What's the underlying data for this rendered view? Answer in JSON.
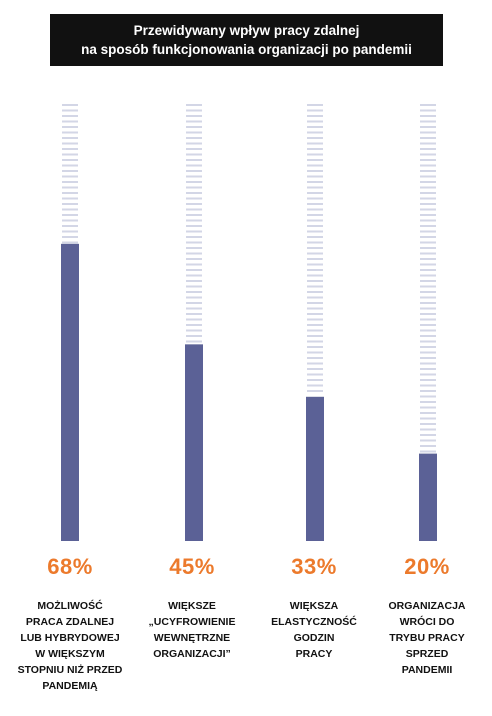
{
  "title": {
    "line1": "Przewidywany wpływ pracy zdalnej",
    "line2": "na sposób funkcjonowania organizacji po pandemii"
  },
  "colors": {
    "bar": "#5b6196",
    "stripe": "#d3d6e6",
    "percent": "#ec7a2c",
    "title_bg": "#111111"
  },
  "chart_data": {
    "type": "bar",
    "title": "Przewidywany wpływ pracy zdalnej na sposób funkcjonowania organizacji po pandemii",
    "categories": [
      "MOŻLIWOŚĆ PRACA ZDALNEJ LUB HYBRYDOWEJ W WIĘKSZYM STOPNIU NIŻ PRZED PANDEMIĄ",
      "WIĘKSZE „UCYFROWIENIE WEWNĘTRZNE ORGANIZACJI”",
      "WIĘKSZA ELASTYCZNOŚĆ GODZIN PRACY",
      "ORGANIZACJA WRÓCI DO TRYBU PRACY SPRZED PANDEMII"
    ],
    "values": [
      68,
      45,
      33,
      20
    ],
    "ylim": [
      0,
      100
    ],
    "grid": false,
    "legend": "none"
  },
  "labels": {
    "percents": [
      "68%",
      "45%",
      "33%",
      "20%"
    ],
    "descriptions": [
      "MOŻLIWOŚĆ\nPRACA ZDALNEJ\nLUB HYBRYDOWEJ\nW WIĘKSZYM\nSTOPNIU NIŻ PRZED\nPANDEMIĄ",
      "WIĘKSZE\n„UCYFROWIENIE\nWEWNĘTRZNE\nORGANIZACJI”",
      "WIĘKSZA\nELASTYCZNOŚĆ\nGODZIN\nPRACY",
      "ORGANIZACJA\nWRÓCI DO\nTRYBU PRACY\nSPRZED\nPANDEMII"
    ]
  }
}
